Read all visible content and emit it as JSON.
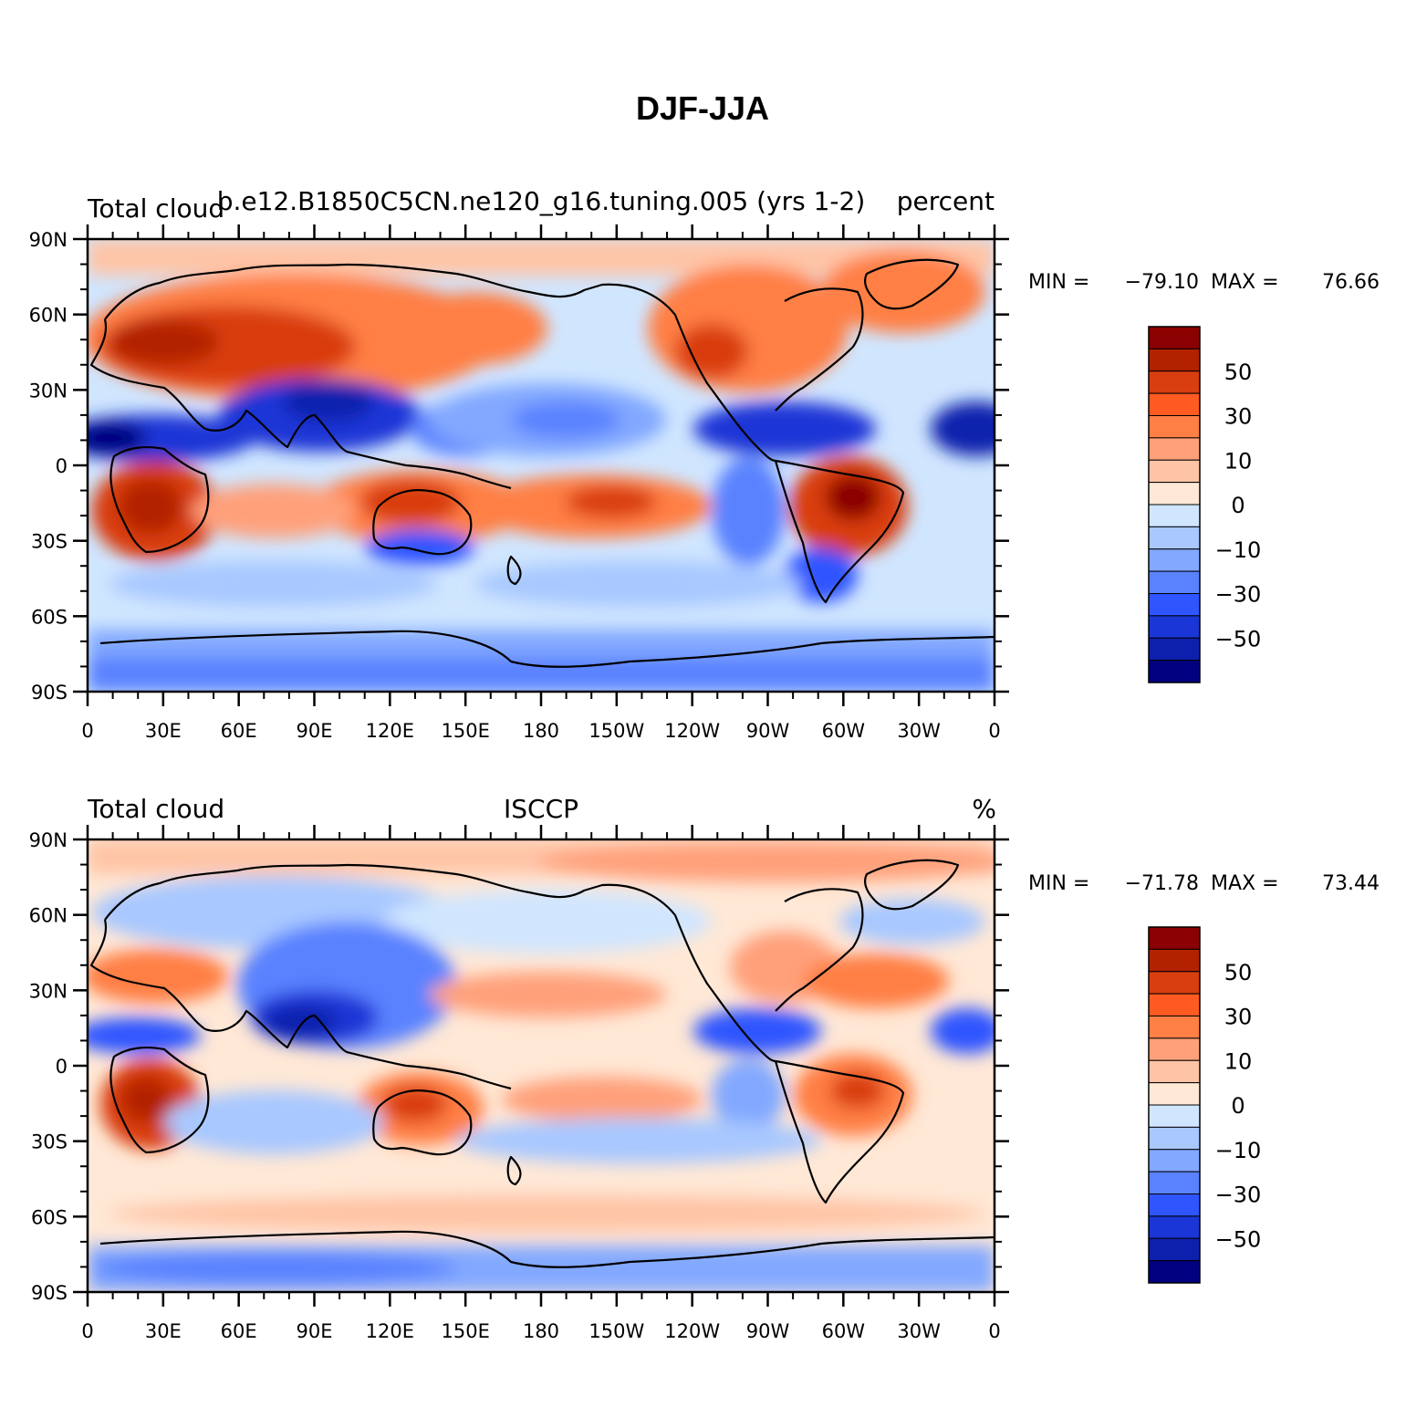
{
  "figure_title": "DJF-JJA",
  "lat_labels": [
    "90N",
    "60N",
    "30N",
    "0",
    "30S",
    "60S",
    "90S"
  ],
  "lon_labels": [
    "0",
    "30E",
    "60E",
    "90E",
    "120E",
    "150E",
    "180",
    "150W",
    "120W",
    "90W",
    "60W",
    "30W",
    "0"
  ],
  "colorbar": {
    "colors": [
      "#8b0000",
      "#b22200",
      "#d93e10",
      "#ff5a22",
      "#ff7f45",
      "#ffa07a",
      "#ffc4a6",
      "#ffe8d6",
      "#d0e6ff",
      "#a8c8ff",
      "#82a8ff",
      "#5a82ff",
      "#2f55ff",
      "#1a36d6",
      "#0d20ad",
      "#000080"
    ],
    "labels": [
      "50",
      "30",
      "10",
      "0",
      "−10",
      "−30",
      "−50"
    ]
  },
  "panels": [
    {
      "left_title": "Total cloud",
      "center_title": "b.e12.B1850C5CN.ne120_g16.tuning.005 (yrs 1-2)",
      "right_title": "percent",
      "min_label": "MIN = ",
      "min_value": "−79.10",
      "max_label": "MAX = ",
      "max_value": "76.66"
    },
    {
      "left_title": "Total cloud",
      "center_title": "ISCCP",
      "right_title": "%",
      "min_label": "MIN = ",
      "min_value": "−71.78",
      "max_label": "MAX = ",
      "max_value": "73.44"
    }
  ],
  "chart_data": [
    {
      "type": "heatmap",
      "title": "DJF-JJA",
      "variable": "Total cloud",
      "source": "b.e12.B1850C5CN.ne120_g16.tuning.005 (yrs 1-2)",
      "units": "percent",
      "x_ticks": [
        "0",
        "30E",
        "60E",
        "90E",
        "120E",
        "150E",
        "180",
        "150W",
        "120W",
        "90W",
        "60W",
        "30W",
        "0"
      ],
      "y_ticks": [
        "90N",
        "60N",
        "30N",
        "0",
        "30S",
        "60S",
        "90S"
      ],
      "xlim": [
        0,
        360
      ],
      "ylim": [
        -90,
        90
      ],
      "min": -79.1,
      "max": 76.66,
      "colorbar_labels": [
        50,
        30,
        10,
        0,
        -10,
        -30,
        -50
      ],
      "colormap": "blue-white-red diverging, 16 levels"
    },
    {
      "type": "heatmap",
      "title": "DJF-JJA",
      "variable": "Total cloud",
      "source": "ISCCP",
      "units": "%",
      "x_ticks": [
        "0",
        "30E",
        "60E",
        "90E",
        "120E",
        "150E",
        "180",
        "150W",
        "120W",
        "90W",
        "60W",
        "30W",
        "0"
      ],
      "y_ticks": [
        "90N",
        "60N",
        "30N",
        "0",
        "30S",
        "60S",
        "90S"
      ],
      "xlim": [
        0,
        360
      ],
      "ylim": [
        -90,
        90
      ],
      "min": -71.78,
      "max": 73.44,
      "colorbar_labels": [
        50,
        30,
        10,
        0,
        -10,
        -30,
        -50
      ],
      "colormap": "blue-white-red diverging, 16 levels"
    }
  ]
}
